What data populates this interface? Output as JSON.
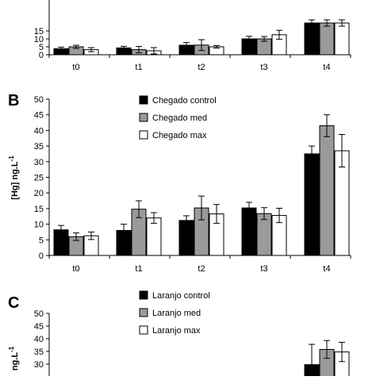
{
  "colors": {
    "control": "#000000",
    "med": "#9a9a9a",
    "max": "#ffffff",
    "stroke": "#000000"
  },
  "chart_data": [
    {
      "type": "bar",
      "panel_label": "",
      "categories": [
        "t0",
        "t1",
        "t2",
        "t3",
        "t4"
      ],
      "ylim": [
        0,
        20
      ],
      "yticks": [
        0,
        5,
        10,
        15
      ],
      "ylabel": "",
      "legend": [],
      "series": [
        {
          "key": "control",
          "values": [
            3.8,
            4.3,
            6.0,
            10.0,
            20.0
          ],
          "errors": [
            1.0,
            1.0,
            1.7,
            1.6,
            2.0
          ]
        },
        {
          "key": "med",
          "values": [
            5.0,
            3.2,
            6.1,
            10.0,
            20.0
          ],
          "errors": [
            1.0,
            2.0,
            3.4,
            1.5,
            2.0
          ]
        },
        {
          "key": "max",
          "values": [
            3.2,
            2.5,
            5.0,
            12.6,
            20.0
          ],
          "errors": [
            1.3,
            2.0,
            0.8,
            2.8,
            2.0
          ]
        }
      ]
    },
    {
      "type": "bar",
      "panel_label": "B",
      "categories": [
        "t0",
        "t1",
        "t2",
        "t3",
        "t4"
      ],
      "ylim": [
        0,
        50
      ],
      "yticks": [
        0,
        5,
        10,
        15,
        20,
        25,
        30,
        35,
        40,
        45,
        50
      ],
      "ylabel": "[Hg] ng.L",
      "ylabel_superscript": "-1",
      "legend": [
        "Chegado control",
        "Chegado med",
        "Chegado max"
      ],
      "series": [
        {
          "key": "control",
          "name": "Chegado control",
          "values": [
            8.2,
            8.0,
            11.2,
            15.2,
            32.5
          ],
          "errors": [
            1.4,
            2.0,
            1.5,
            1.8,
            2.5
          ]
        },
        {
          "key": "med",
          "name": "Chegado med",
          "values": [
            6.0,
            14.8,
            15.2,
            13.4,
            41.5
          ],
          "errors": [
            1.2,
            2.7,
            3.8,
            1.9,
            3.5
          ]
        },
        {
          "key": "max",
          "name": "Chegado max",
          "values": [
            6.3,
            12.0,
            13.3,
            12.8,
            33.5
          ],
          "errors": [
            1.2,
            1.7,
            3.0,
            2.3,
            5.2
          ]
        }
      ]
    },
    {
      "type": "bar",
      "panel_label": "C",
      "categories": [
        "t0",
        "t1",
        "t2",
        "t3",
        "t4"
      ],
      "ylim": [
        0,
        50
      ],
      "yticks": [
        30,
        35,
        40,
        45,
        50
      ],
      "ylabel": "ng.L",
      "ylabel_superscript": "-1",
      "legend": [
        "Laranjo control",
        "Laranjo med",
        "Laranjo max"
      ],
      "series": [
        {
          "key": "control",
          "name": "Laranjo control",
          "values": [
            null,
            null,
            null,
            null,
            29.8
          ],
          "errors": [
            null,
            null,
            null,
            null,
            8.0
          ]
        },
        {
          "key": "med",
          "name": "Laranjo med",
          "values": [
            null,
            null,
            null,
            null,
            35.8
          ],
          "errors": [
            null,
            null,
            null,
            null,
            3.5
          ]
        },
        {
          "key": "max",
          "name": "Laranjo max",
          "values": [
            null,
            null,
            null,
            null,
            34.8
          ],
          "errors": [
            null,
            null,
            null,
            null,
            3.8
          ]
        }
      ]
    }
  ]
}
